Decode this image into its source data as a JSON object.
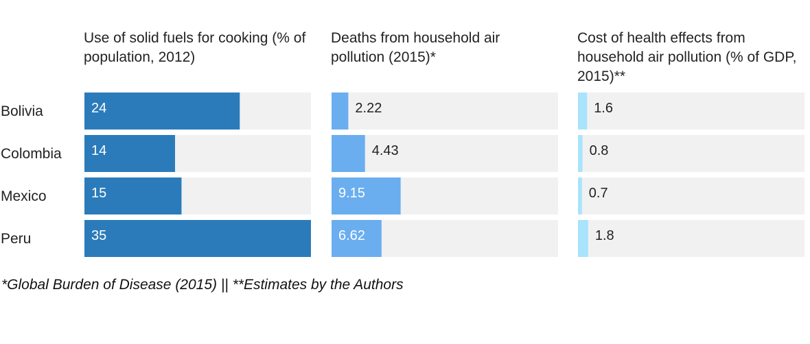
{
  "chart_data": {
    "type": "bar",
    "categories": [
      "Bolivia",
      "Colombia",
      "Mexico",
      "Peru"
    ],
    "panels": [
      {
        "title": "Use of solid fuels for cooking (% of population, 2012)",
        "values": [
          24,
          14,
          15,
          35
        ],
        "labels": [
          "24",
          "14",
          "15",
          "35"
        ],
        "max": 35,
        "color": "#2b7bba",
        "label_inside": [
          true,
          true,
          true,
          true
        ]
      },
      {
        "title": "Deaths from household air pollution (2015)*",
        "values": [
          2.22,
          4.43,
          9.15,
          6.62
        ],
        "labels": [
          "2.22",
          "4.43",
          "9.15",
          "6.62"
        ],
        "max": 30,
        "color": "#6aaef0",
        "label_inside": [
          false,
          false,
          true,
          true
        ]
      },
      {
        "title": "Cost of health effects from household air pollution (% of GDP, 2015)**",
        "values": [
          1.6,
          0.8,
          0.7,
          1.8
        ],
        "labels": [
          "1.6",
          "0.8",
          "0.7",
          "1.8"
        ],
        "max": 40,
        "color": "#a8e4fb",
        "label_inside": [
          false,
          false,
          false,
          false
        ]
      }
    ],
    "footnote": "*Global Burden of Disease (2015) || **Estimates by the Authors",
    "background_color": "#f1f1f1",
    "grid": false,
    "legend": "none"
  }
}
